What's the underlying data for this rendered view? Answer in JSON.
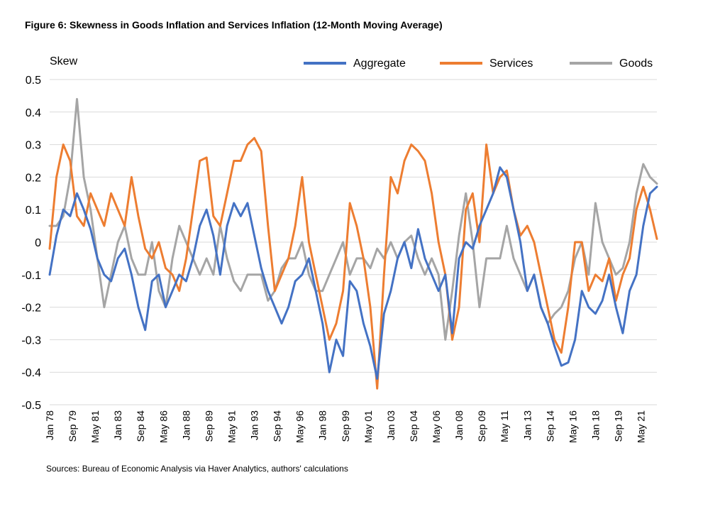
{
  "title": "Figure 6: Skewness in Goods Inflation and Services Inflation (12-Month Moving Average)",
  "source": "Sources: Bureau of Economic Analysis via Haver Analytics, authors' calculations",
  "chart_data": {
    "type": "line",
    "ylabel": "Skew",
    "ylim": [
      -0.5,
      0.5
    ],
    "yticks": [
      0.5,
      0.4,
      0.3,
      0.2,
      0.1,
      0,
      -0.1,
      -0.2,
      -0.3,
      -0.4,
      -0.5
    ],
    "ytick_labels": [
      "0.5",
      "0.4",
      "0.3",
      "0.2",
      "0.1",
      "0",
      "-0.1",
      "-0.2",
      "-0.3",
      "-0.4",
      "-0.5"
    ],
    "xlim": [
      1978.0,
      2022.5
    ],
    "xticks": [
      1978.0,
      1979.667,
      1981.333,
      1983.0,
      1984.667,
      1986.333,
      1988.0,
      1989.667,
      1991.333,
      1993.0,
      1994.667,
      1996.333,
      1998.0,
      1999.667,
      2001.333,
      2003.0,
      2004.667,
      2006.333,
      2008.0,
      2009.667,
      2011.333,
      2013.0,
      2014.667,
      2016.333,
      2018.0,
      2019.667,
      2021.333
    ],
    "xtick_labels": [
      "Jan 78",
      "Sep 79",
      "May 81",
      "Jan 83",
      "Sep 84",
      "May 86",
      "Jan 88",
      "Sep 89",
      "May 91",
      "Jan 93",
      "Sep 94",
      "May 96",
      "Jan 98",
      "Sep 99",
      "May 01",
      "Jan 03",
      "Sep 04",
      "May 06",
      "Jan 08",
      "Sep 09",
      "May 11",
      "Jan 13",
      "Sep 14",
      "May 16",
      "Jan 18",
      "Sep 19",
      "May 21"
    ],
    "grid": true,
    "legend_position": "top",
    "series": [
      {
        "name": "Aggregate",
        "color": "#4472C4",
        "x": [
          1978.0,
          1978.5,
          1979.0,
          1979.5,
          1980.0,
          1980.5,
          1981.0,
          1981.5,
          1982.0,
          1982.5,
          1983.0,
          1983.5,
          1984.0,
          1984.5,
          1985.0,
          1985.5,
          1986.0,
          1986.5,
          1987.0,
          1987.5,
          1988.0,
          1988.5,
          1989.0,
          1989.5,
          1990.0,
          1990.5,
          1991.0,
          1991.5,
          1992.0,
          1992.5,
          1993.0,
          1993.5,
          1994.0,
          1994.5,
          1995.0,
          1995.5,
          1996.0,
          1996.5,
          1997.0,
          1997.5,
          1998.0,
          1998.5,
          1999.0,
          1999.5,
          2000.0,
          2000.5,
          2001.0,
          2001.5,
          2002.0,
          2002.5,
          2003.0,
          2003.5,
          2004.0,
          2004.5,
          2005.0,
          2005.5,
          2006.0,
          2006.5,
          2007.0,
          2007.5,
          2008.0,
          2008.5,
          2009.0,
          2009.5,
          2010.0,
          2010.5,
          2011.0,
          2011.5,
          2012.0,
          2012.5,
          2013.0,
          2013.5,
          2014.0,
          2014.5,
          2015.0,
          2015.5,
          2016.0,
          2016.5,
          2017.0,
          2017.5,
          2018.0,
          2018.5,
          2019.0,
          2019.5,
          2020.0,
          2020.5,
          2021.0,
          2021.5,
          2022.0,
          2022.5
        ],
        "y": [
          -0.1,
          0.02,
          0.1,
          0.08,
          0.15,
          0.1,
          0.04,
          -0.05,
          -0.1,
          -0.12,
          -0.05,
          -0.02,
          -0.1,
          -0.2,
          -0.27,
          -0.12,
          -0.1,
          -0.2,
          -0.15,
          -0.1,
          -0.12,
          -0.05,
          0.05,
          0.1,
          0.02,
          -0.1,
          0.05,
          0.12,
          0.08,
          0.12,
          0.02,
          -0.08,
          -0.15,
          -0.2,
          -0.25,
          -0.2,
          -0.12,
          -0.1,
          -0.05,
          -0.15,
          -0.25,
          -0.4,
          -0.3,
          -0.35,
          -0.12,
          -0.15,
          -0.25,
          -0.32,
          -0.42,
          -0.22,
          -0.15,
          -0.05,
          0.0,
          -0.08,
          0.04,
          -0.05,
          -0.1,
          -0.15,
          -0.1,
          -0.28,
          -0.05,
          0.0,
          -0.02,
          0.05,
          0.1,
          0.15,
          0.23,
          0.2,
          0.1,
          0.0,
          -0.15,
          -0.1,
          -0.2,
          -0.25,
          -0.32,
          -0.38,
          -0.37,
          -0.3,
          -0.15,
          -0.2,
          -0.22,
          -0.18,
          -0.1,
          -0.2,
          -0.28,
          -0.15,
          -0.1,
          0.05,
          0.15,
          0.17
        ]
      },
      {
        "name": "Services",
        "color": "#ED7D31",
        "x": [
          1978.0,
          1978.5,
          1979.0,
          1979.5,
          1980.0,
          1980.5,
          1981.0,
          1981.5,
          1982.0,
          1982.5,
          1983.0,
          1983.5,
          1984.0,
          1984.5,
          1985.0,
          1985.5,
          1986.0,
          1986.5,
          1987.0,
          1987.5,
          1988.0,
          1988.5,
          1989.0,
          1989.5,
          1990.0,
          1990.5,
          1991.0,
          1991.5,
          1992.0,
          1992.5,
          1993.0,
          1993.5,
          1994.0,
          1994.5,
          1995.0,
          1995.5,
          1996.0,
          1996.5,
          1997.0,
          1997.5,
          1998.0,
          1998.5,
          1999.0,
          1999.5,
          2000.0,
          2000.5,
          2001.0,
          2001.5,
          2002.0,
          2002.5,
          2003.0,
          2003.5,
          2004.0,
          2004.5,
          2005.0,
          2005.5,
          2006.0,
          2006.5,
          2007.0,
          2007.5,
          2008.0,
          2008.5,
          2009.0,
          2009.5,
          2010.0,
          2010.5,
          2011.0,
          2011.5,
          2012.0,
          2012.5,
          2013.0,
          2013.5,
          2014.0,
          2014.5,
          2015.0,
          2015.5,
          2016.0,
          2016.5,
          2017.0,
          2017.5,
          2018.0,
          2018.5,
          2019.0,
          2019.5,
          2020.0,
          2020.5,
          2021.0,
          2021.5,
          2022.0,
          2022.5
        ],
        "y": [
          -0.02,
          0.2,
          0.3,
          0.25,
          0.08,
          0.05,
          0.15,
          0.1,
          0.05,
          0.15,
          0.1,
          0.05,
          0.2,
          0.08,
          -0.02,
          -0.05,
          0.0,
          -0.08,
          -0.1,
          -0.15,
          -0.05,
          0.1,
          0.25,
          0.26,
          0.08,
          0.05,
          0.15,
          0.25,
          0.25,
          0.3,
          0.32,
          0.28,
          0.05,
          -0.15,
          -0.1,
          -0.05,
          0.05,
          0.2,
          0.0,
          -0.1,
          -0.2,
          -0.3,
          -0.25,
          -0.15,
          0.12,
          0.05,
          -0.05,
          -0.2,
          -0.45,
          -0.1,
          0.2,
          0.15,
          0.25,
          0.3,
          0.28,
          0.25,
          0.15,
          0.0,
          -0.1,
          -0.3,
          -0.2,
          0.1,
          0.15,
          0.0,
          0.3,
          0.15,
          0.2,
          0.22,
          0.1,
          0.02,
          0.05,
          0.0,
          -0.1,
          -0.2,
          -0.3,
          -0.34,
          -0.2,
          0.0,
          0.0,
          -0.15,
          -0.1,
          -0.12,
          -0.05,
          -0.18,
          -0.1,
          -0.05,
          0.1,
          0.17,
          0.1,
          0.01
        ]
      },
      {
        "name": "Goods",
        "color": "#A5A5A5",
        "x": [
          1978.0,
          1978.5,
          1979.0,
          1979.5,
          1980.0,
          1980.5,
          1981.0,
          1981.5,
          1982.0,
          1982.5,
          1983.0,
          1983.5,
          1984.0,
          1984.5,
          1985.0,
          1985.5,
          1986.0,
          1986.5,
          1987.0,
          1987.5,
          1988.0,
          1988.5,
          1989.0,
          1989.5,
          1990.0,
          1990.5,
          1991.0,
          1991.5,
          1992.0,
          1992.5,
          1993.0,
          1993.5,
          1994.0,
          1994.5,
          1995.0,
          1995.5,
          1996.0,
          1996.5,
          1997.0,
          1997.5,
          1998.0,
          1998.5,
          1999.0,
          1999.5,
          2000.0,
          2000.5,
          2001.0,
          2001.5,
          2002.0,
          2002.5,
          2003.0,
          2003.5,
          2004.0,
          2004.5,
          2005.0,
          2005.5,
          2006.0,
          2006.5,
          2007.0,
          2007.5,
          2008.0,
          2008.5,
          2009.0,
          2009.5,
          2010.0,
          2010.5,
          2011.0,
          2011.5,
          2012.0,
          2012.5,
          2013.0,
          2013.5,
          2014.0,
          2014.5,
          2015.0,
          2015.5,
          2016.0,
          2016.5,
          2017.0,
          2017.5,
          2018.0,
          2018.5,
          2019.0,
          2019.5,
          2020.0,
          2020.5,
          2021.0,
          2021.5,
          2022.0,
          2022.5
        ],
        "y": [
          0.05,
          0.05,
          0.08,
          0.2,
          0.44,
          0.2,
          0.1,
          -0.05,
          -0.2,
          -0.1,
          0.0,
          0.05,
          -0.05,
          -0.1,
          -0.1,
          0.0,
          -0.15,
          -0.2,
          -0.05,
          0.05,
          0.0,
          -0.05,
          -0.1,
          -0.05,
          -0.1,
          0.05,
          -0.05,
          -0.12,
          -0.15,
          -0.1,
          -0.1,
          -0.1,
          -0.18,
          -0.15,
          -0.08,
          -0.05,
          -0.05,
          0.0,
          -0.1,
          -0.15,
          -0.15,
          -0.1,
          -0.05,
          0.0,
          -0.1,
          -0.05,
          -0.05,
          -0.08,
          -0.02,
          -0.05,
          0.0,
          -0.05,
          0.0,
          0.02,
          -0.05,
          -0.1,
          -0.05,
          -0.1,
          -0.3,
          -0.15,
          0.02,
          0.15,
          0.0,
          -0.2,
          -0.05,
          -0.05,
          -0.05,
          0.05,
          -0.05,
          -0.1,
          -0.15,
          -0.1,
          -0.2,
          -0.25,
          -0.22,
          -0.2,
          -0.15,
          -0.05,
          0.0,
          -0.1,
          0.12,
          0.0,
          -0.05,
          -0.1,
          -0.08,
          0.0,
          0.15,
          0.24,
          0.2,
          0.18
        ]
      }
    ]
  }
}
